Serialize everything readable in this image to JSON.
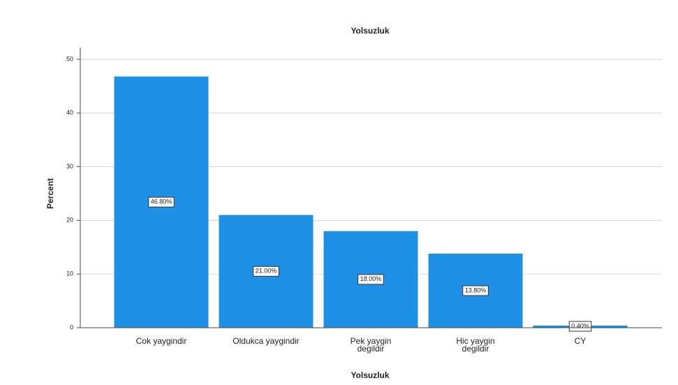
{
  "chart_data": {
    "type": "bar",
    "title": "Yolsuzluk",
    "x_label": "Yolsuzluk",
    "y_label": "Percent",
    "categories": [
      "Cok yaygindir",
      "Oldukca yaygindir",
      "Pek yaygin degildir",
      "Hic yaygin degildir",
      "CY"
    ],
    "values": [
      46.8,
      21.0,
      18.0,
      13.8,
      0.4
    ],
    "value_labels": [
      "46.80%",
      "21.00%",
      "18.00%",
      "13.80%",
      "0.40%"
    ],
    "color": "#1e90e6",
    "ylim": [
      0,
      52.2
    ],
    "yticks": [
      0,
      10,
      20,
      30,
      40,
      50
    ],
    "grid": true
  }
}
